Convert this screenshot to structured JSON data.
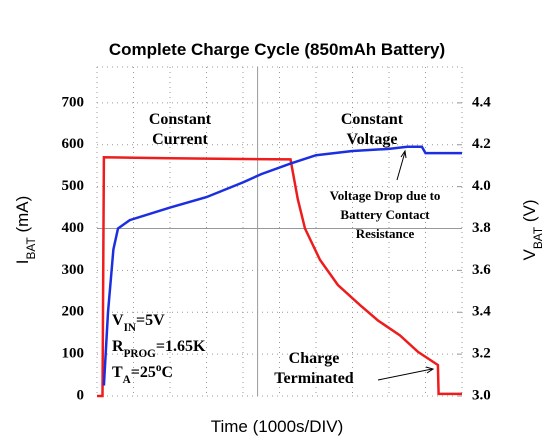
{
  "chart_data": {
    "type": "line",
    "title": "Complete Charge Cycle (850mAh Battery)",
    "xlabel": "Time (1000s/DIV)",
    "ylabel": [
      {
        "t": "I"
      },
      {
        "sub": "BAT"
      },
      {
        "t": " (mA)"
      }
    ],
    "y2label": [
      {
        "t": "V"
      },
      {
        "sub": "BAT"
      },
      {
        "t": " (V)"
      }
    ],
    "xlim": [
      0,
      10000
    ],
    "ylim": [
      0,
      800
    ],
    "yticks": [
      0,
      100,
      200,
      300,
      400,
      500,
      600,
      700
    ],
    "y2lim": [
      3.0,
      4.6
    ],
    "y2ticks": [
      {
        "value": 3.0,
        "label": "3.0"
      },
      3.2,
      3.4,
      3.6,
      3.8,
      {
        "value": 4.0,
        "label": "4.0"
      },
      4.2,
      4.4
    ],
    "grid": true,
    "series": [
      {
        "name": "IBAT",
        "color": "#ee1c1c",
        "x": [
          0,
          150,
          190,
          2000,
          4000,
          5300,
          5500,
          5700,
          6110,
          6600,
          7205,
          7700,
          8300,
          8800,
          9340,
          9360,
          10000
        ],
        "values": [
          0,
          0,
          570,
          568,
          566,
          565,
          470,
          400,
          325,
          265,
          217,
          180,
          145,
          105,
          74,
          5,
          5
        ]
      },
      {
        "name": "VBAT",
        "color": "#1c2fe0",
        "axis": "y2",
        "x": [
          190,
          300,
          450,
          575,
          900,
          2000,
          3000,
          4000,
          4500,
          5300,
          6000,
          7000,
          8000,
          8500,
          8900,
          9000,
          10000
        ],
        "values": [
          3.05,
          3.4,
          3.7,
          3.8,
          3.84,
          3.9,
          3.95,
          4.02,
          4.06,
          4.11,
          4.15,
          4.17,
          4.18,
          4.19,
          4.19,
          4.16,
          4.16
        ]
      }
    ],
    "annotations": [
      {
        "lines": [
          [
            {
              "t": "Constant"
            }
          ],
          [
            {
              "t": "Current"
            }
          ]
        ]
      },
      {
        "lines": [
          [
            {
              "t": "Constant"
            }
          ],
          [
            {
              "t": "Voltage"
            }
          ]
        ]
      },
      {
        "lines": [
          [
            {
              "t": "Voltage Drop due to"
            }
          ],
          [
            {
              "t": "Battery Contact"
            }
          ],
          [
            {
              "t": "Resistance"
            }
          ]
        ]
      },
      {
        "lines": [
          [
            {
              "t": "V"
            },
            {
              "sub": "IN"
            },
            {
              "t": "=5V"
            }
          ],
          [
            {
              "t": "R"
            },
            {
              "sub": "PROG"
            },
            {
              "t": "=1.65K"
            }
          ],
          [
            {
              "t": "T"
            },
            {
              "sub": "A"
            },
            {
              "t": "=25"
            },
            {
              "sup": "o"
            },
            {
              "t": "C"
            }
          ]
        ]
      },
      {
        "lines": [
          [
            {
              "t": "Charge"
            }
          ],
          [
            {
              "t": "Terminated"
            }
          ]
        ]
      }
    ]
  }
}
